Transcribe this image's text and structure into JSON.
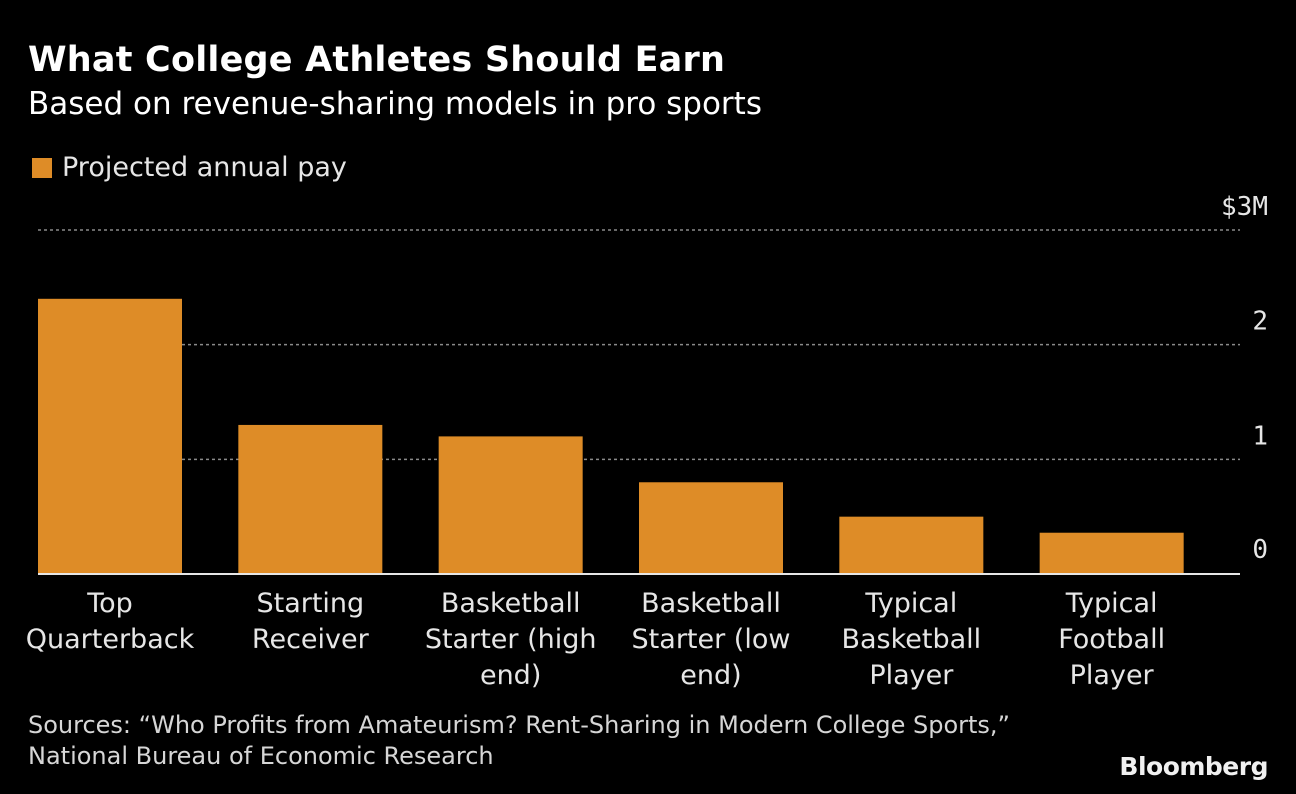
{
  "header": {
    "title": "What College Athletes Should Earn",
    "subtitle": "Based on revenue-sharing models in pro sports"
  },
  "legend": {
    "label": "Projected annual pay"
  },
  "footer": {
    "sources_line1": "Sources: “Who Profits from Amateurism? Rent-Sharing in Modern College Sports,”",
    "sources_line2": "National Bureau of Economic Research",
    "brand": "Bloomberg"
  },
  "colors": {
    "bar": "#de8c27",
    "background": "#000000",
    "text": "#ffffff",
    "grid": "#8a8a8a"
  },
  "chart_data": {
    "type": "bar",
    "categories": [
      [
        "Top",
        "Quarterback"
      ],
      [
        "Starting",
        "Receiver"
      ],
      [
        "Basketball",
        "Starter (high",
        "end)"
      ],
      [
        "Basketball",
        "Starter (low",
        "end)"
      ],
      [
        "Typical",
        "Basketball",
        "Player"
      ],
      [
        "Typical",
        "Football",
        "Player"
      ]
    ],
    "series": [
      {
        "name": "Projected annual pay",
        "values": [
          2.4,
          1.3,
          1.2,
          0.8,
          0.5,
          0.36
        ]
      }
    ],
    "y_ticks": [
      {
        "value": 3,
        "label": "$3M"
      },
      {
        "value": 2,
        "label": "2"
      },
      {
        "value": 1,
        "label": "1"
      },
      {
        "value": 0,
        "label": "0"
      }
    ],
    "ylim": [
      0,
      3
    ],
    "grid": true,
    "y_axis_position": "right",
    "legend_position": "top-left"
  }
}
